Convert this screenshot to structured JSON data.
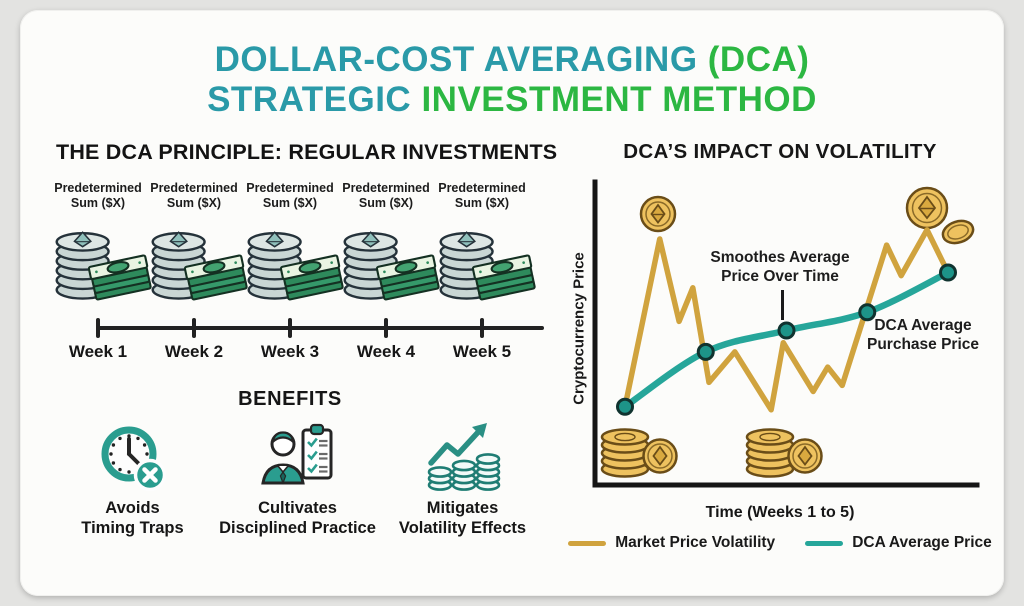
{
  "title": {
    "line1_teal": "DOLLAR-COST AVERAGING",
    "line1_green": "(DCA)",
    "line2_teal": "STRATEGIC",
    "line2_green": "INVESTMENT METHOD"
  },
  "principle": {
    "header": "THE DCA PRINCIPLE: REGULAR INVESTMENTS",
    "weeks": [
      {
        "sum_line1": "Predetermined",
        "sum_line2": "Sum ($X)",
        "week_label": "Week 1"
      },
      {
        "sum_line1": "Predetermined",
        "sum_line2": "Sum ($X)",
        "week_label": "Week 2"
      },
      {
        "sum_line1": "Predetermined",
        "sum_line2": "Sum ($X)",
        "week_label": "Week 3"
      },
      {
        "sum_line1": "Predetermined",
        "sum_line2": "Sum ($X)",
        "week_label": "Week 4"
      },
      {
        "sum_line1": "Predetermined",
        "sum_line2": "Sum ($X)",
        "week_label": "Week 5"
      }
    ]
  },
  "benefits": {
    "header": "BENEFITS",
    "items": [
      {
        "icon": "clock-crossed-icon",
        "line1": "Avoids",
        "line2": "Timing Traps"
      },
      {
        "icon": "trader-checklist-icon",
        "line1": "Cultivates",
        "line2": "Disciplined Practice"
      },
      {
        "icon": "coin-growth-arrow-icon",
        "line1": "Mitigates",
        "line2": "Volatility Effects"
      }
    ]
  },
  "volatility": {
    "header": "DCA’S IMPACT ON VOLATILITY",
    "y_axis_label": "Cryptocurrency Price",
    "x_axis_label": "Time (Weeks 1 to 5)",
    "annotation_smooth_line1": "Smoothes Average",
    "annotation_smooth_line2": "Price Over Time",
    "annotation_dca_line1": "DCA Average",
    "annotation_dca_line2": "Purchase Price",
    "legend": [
      {
        "label": "Market Price Volatility",
        "color": "#d0a33e"
      },
      {
        "label": "DCA Average Price",
        "color": "#26a69a"
      }
    ],
    "decorations": [
      "eth-coin-top-left-icon",
      "eth-coins-top-right-icon",
      "eth-coin-stack-bottom-left-icon",
      "eth-coin-stack-bottom-center-icon"
    ]
  },
  "chart_data": {
    "type": "line",
    "title": "DCA'S IMPACT ON VOLATILITY",
    "xlabel": "Time (Weeks 1 to 5)",
    "ylabel": "Cryptocurrency Price",
    "x_range": [
      1,
      5
    ],
    "y_range": [
      0,
      100
    ],
    "y_units": "relative price (unlabeled axis)",
    "grid": false,
    "legend_position": "bottom",
    "series": [
      {
        "name": "Market Price Volatility",
        "color": "#d0a33e",
        "style": "jagged",
        "x": [
          1,
          1.43,
          1.67,
          1.84,
          2.04,
          2.36,
          2.81,
          2.96,
          3.33,
          3.51,
          3.69,
          4.24,
          4.42,
          4.74,
          5
        ],
        "y": [
          25,
          80,
          53,
          64,
          33,
          43,
          24,
          46,
          30,
          38,
          32,
          78,
          68,
          83,
          69
        ]
      },
      {
        "name": "DCA Average Price",
        "color": "#26a69a",
        "style": "smooth",
        "markers": true,
        "x": [
          1,
          2,
          3,
          4,
          5
        ],
        "y": [
          25,
          43,
          50,
          56,
          69
        ]
      }
    ]
  },
  "colors": {
    "title_teal": "#2a9aa8",
    "title_green": "#2cb742",
    "accent_teal": "#2a9d8f",
    "gold": "#d0a33e",
    "dca_line": "#26a69a",
    "dot_fill": "#1d9488",
    "heading_dark": "#161616"
  }
}
